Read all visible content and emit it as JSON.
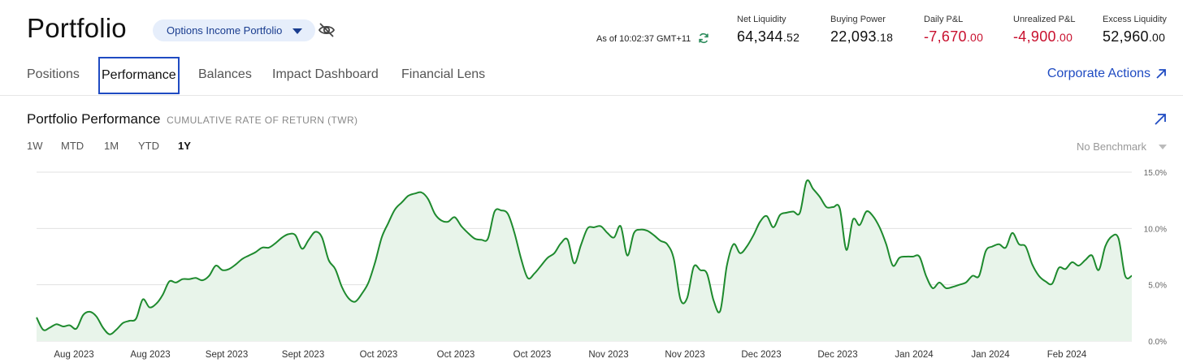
{
  "header": {
    "title": "Portfolio",
    "portfolio_selector": "Options Income Portfolio",
    "as_of": "As of 10:02:37 GMT+11",
    "icons": {
      "hide": "eye-off-icon",
      "refresh": "refresh-icon"
    }
  },
  "metrics": [
    {
      "label": "Net Liquidity",
      "int": "64,344",
      "dec": ".52",
      "negative": false
    },
    {
      "label": "Buying Power",
      "int": "22,093",
      "dec": ".18",
      "negative": false
    },
    {
      "label": "Daily P&L",
      "int": "-7,670",
      "dec": ".00",
      "negative": true
    },
    {
      "label": "Unrealized P&L",
      "int": "-4,900",
      "dec": ".00",
      "negative": true
    },
    {
      "label": "Excess Liquidity",
      "int": "52,960",
      "dec": ".00",
      "negative": false
    }
  ],
  "tabs": [
    {
      "label": "Positions",
      "active": false
    },
    {
      "label": "Performance",
      "active": true
    },
    {
      "label": "Balances",
      "active": false
    },
    {
      "label": "Impact Dashboard",
      "active": false
    },
    {
      "label": "Financial Lens",
      "active": false
    }
  ],
  "corporate_actions": "Corporate Actions",
  "panel": {
    "title": "Portfolio Performance",
    "subtitle": "CUMULATIVE RATE OF RETURN (TWR)",
    "ranges": [
      {
        "label": "1W",
        "active": false
      },
      {
        "label": "MTD",
        "active": false
      },
      {
        "label": "1M",
        "active": false
      },
      {
        "label": "YTD",
        "active": false
      },
      {
        "label": "1Y",
        "active": true
      }
    ],
    "benchmark": "No Benchmark"
  },
  "colors": {
    "accent": "#1f4bc2",
    "negative": "#c8102e",
    "line": "#1e8a2e",
    "fill": "#e8f4ea"
  },
  "chart_data": {
    "type": "area",
    "x_tick_labels": [
      "Aug 2023",
      "Aug 2023",
      "Sept 2023",
      "Sept 2023",
      "Oct 2023",
      "Oct 2023",
      "Oct 2023",
      "Nov 2023",
      "Nov 2023",
      "Dec 2023",
      "Dec 2023",
      "Jan 2024",
      "Jan 2024",
      "Feb 2024"
    ],
    "y_ticks": [
      0,
      5,
      10,
      15
    ],
    "y_tick_labels": [
      "0.0%",
      "5.0%",
      "10.0%",
      "15.0%"
    ],
    "ylim": [
      0,
      15
    ],
    "grid": true,
    "series": [
      {
        "values": [
          2.1,
          1.0,
          1.2,
          1.5,
          1.3,
          1.4,
          1.1,
          2.3,
          2.6,
          2.2,
          1.2,
          0.6,
          1.0,
          1.6,
          1.8,
          2.0,
          3.7,
          3.0,
          3.3,
          4.1,
          5.3,
          5.2,
          5.5,
          5.5,
          5.6,
          5.4,
          5.8,
          6.7,
          6.3,
          6.4,
          6.8,
          7.3,
          7.6,
          7.9,
          8.3,
          8.3,
          8.7,
          9.2,
          9.5,
          9.4,
          8.2,
          9.0,
          9.7,
          9.2,
          7.2,
          6.4,
          4.8,
          3.8,
          3.5,
          4.2,
          5.2,
          7.0,
          9.2,
          10.5,
          11.7,
          12.3,
          12.9,
          13.1,
          13.2,
          12.6,
          11.3,
          10.7,
          10.6,
          11.0,
          10.2,
          9.6,
          9.1,
          9.0,
          9.1,
          11.5,
          11.6,
          11.3,
          9.6,
          7.3,
          5.6,
          6.0,
          6.7,
          7.4,
          7.8,
          8.7,
          9.0,
          6.9,
          8.5,
          10.0,
          10.1,
          10.2,
          9.6,
          9.2,
          10.2,
          7.6,
          9.6,
          9.9,
          9.8,
          9.4,
          8.9,
          8.6,
          7.3,
          3.7,
          3.8,
          6.6,
          6.3,
          6.0,
          3.6,
          2.7,
          6.7,
          8.6,
          7.8,
          8.4,
          9.4,
          10.6,
          11.1,
          10.1,
          11.2,
          11.4,
          11.5,
          11.4,
          14.2,
          13.5,
          12.8,
          11.9,
          11.9,
          11.8,
          8.1,
          10.8,
          10.3,
          11.5,
          11.1,
          10.1,
          8.6,
          6.7,
          7.4,
          7.5,
          7.5,
          7.5,
          5.8,
          4.7,
          5.2,
          4.7,
          4.8,
          5.0,
          5.2,
          5.8,
          5.8,
          8.0,
          8.4,
          8.6,
          8.3,
          9.6,
          8.6,
          8.4,
          6.8,
          5.8,
          5.3,
          5.1,
          6.5,
          6.4,
          7.0,
          6.7,
          7.2,
          7.6,
          6.3,
          8.4,
          9.3,
          9.1,
          5.8,
          5.8
        ]
      }
    ]
  }
}
